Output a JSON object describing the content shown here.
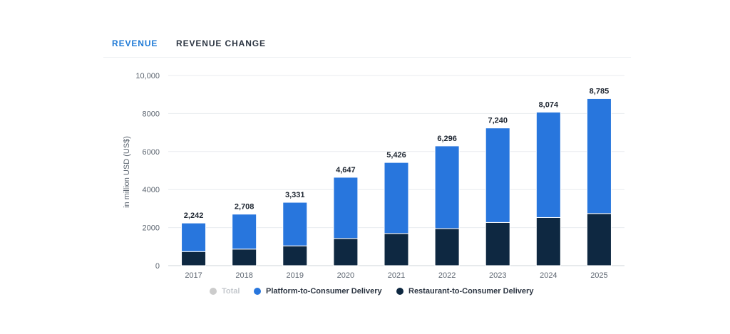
{
  "tabs": {
    "revenue": "REVENUE",
    "revenue_change": "REVENUE CHANGE"
  },
  "legend": [
    {
      "label": "Total",
      "color": "#cccccc",
      "muted": true
    },
    {
      "label": "Platform-to-Consumer Delivery",
      "color": "#2876dd",
      "muted": false
    },
    {
      "label": "Restaurant-to-Consumer Delivery",
      "color": "#0e2841",
      "muted": false
    }
  ],
  "chart_data": {
    "type": "bar",
    "stacked": true,
    "ylabel": "in million USD (US$)",
    "ylim": [
      0,
      10000
    ],
    "yticks": [
      0,
      2000,
      4000,
      6000,
      8000,
      10000
    ],
    "ytick_labels": [
      "0",
      "2000",
      "4000",
      "6000",
      "8000",
      "10,000"
    ],
    "grid": true,
    "legend_position": "bottom",
    "categories": [
      "2017",
      "2018",
      "2019",
      "2020",
      "2021",
      "2022",
      "2023",
      "2024",
      "2025"
    ],
    "totals": [
      2242,
      2708,
      3331,
      4647,
      5426,
      6296,
      7240,
      8074,
      8785
    ],
    "total_labels": [
      "2,242",
      "2,708",
      "3,331",
      "4,647",
      "5,426",
      "6,296",
      "7,240",
      "8,074",
      "8,785"
    ],
    "series": [
      {
        "name": "Restaurant-to-Consumer Delivery",
        "color": "#0e2841",
        "values": [
          740,
          870,
          1040,
          1430,
          1690,
          1950,
          2270,
          2530,
          2740
        ]
      },
      {
        "name": "Platform-to-Consumer Delivery",
        "color": "#2876dd",
        "values": [
          1502,
          1838,
          2291,
          3217,
          3736,
          4346,
          4970,
          5544,
          6045
        ]
      }
    ]
  }
}
